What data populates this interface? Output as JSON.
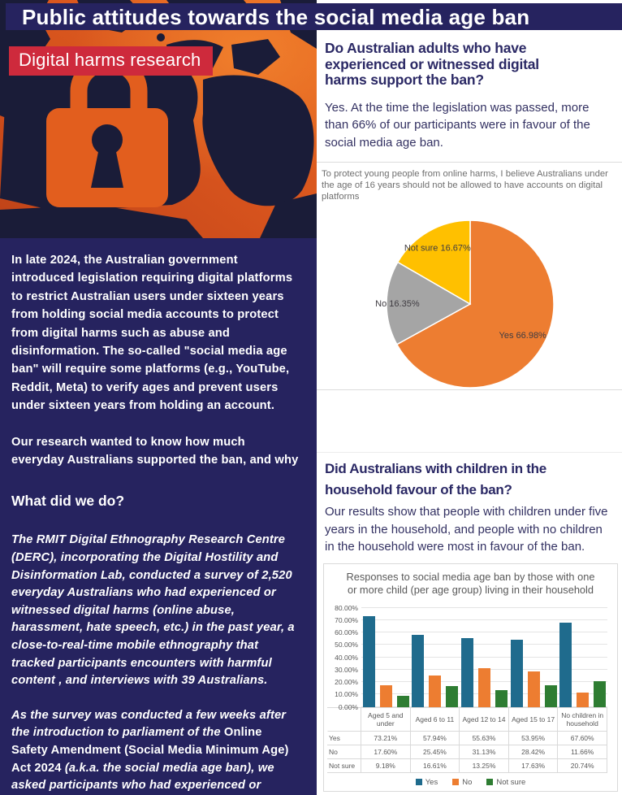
{
  "header": {
    "title": "Public attitudes towards the social media age ban"
  },
  "left": {
    "badge": "Digital harms research",
    "para1": "In late 2024, the Australian government introduced legislation requiring digital platforms to restrict Australian users under sixteen years from holding social media accounts to protect from digital harms such as abuse and disinformation.  The so-called \"social media age ban\" will require some platforms (e.g., YouTube, Reddit, Meta) to verify ages and prevent users under sixteen years from holding an account.",
    "para2": "Our research wanted to know how much everyday Australians supported the ban, and why",
    "subheading": "What did we do?",
    "para3": "The RMIT Digital Ethnography Research Centre (DERC), incorporating the Digital Hostility and Disinformation Lab, conducted a survey of 2,520 everyday Australians who had experienced or witnessed digital harms (online abuse, harassment, hate speech, etc.) in the past year, a close-to-real-time mobile ethnography that tracked participants encounters with harmful content , and interviews with 39 Australians.",
    "para4_italic_pre": "As the survey was conducted a few weeks after the introduction to parliament of the ",
    "para4_upright": "Online Safety Amendment (Social Media Minimum Age) Act 2024",
    "para4_italic_post": " (a.k.a. the social media age ban), we asked participants who had experienced or witnessed digital harms about the extent to which they supported it."
  },
  "right": {
    "q1_heading": "Do Australian adults who have experienced or witnessed digital harms support the ban?",
    "q1_body": "Yes. At the time the legislation was passed, more than 66% of our participants were in favour of the social media age ban.",
    "q2_heading": "Did Australians with children in the household favour of the ban?",
    "q2_body": "Our results show that people with children under five years in the household, and people with no children in the household were most in favour of the ban."
  },
  "chart_data": [
    {
      "type": "pie",
      "title": "To protect young people from online harms, I believe Australians under the age of 16 years should not be allowed to have accounts on digital platforms",
      "labels": [
        "Yes",
        "No",
        "Not sure"
      ],
      "values": [
        66.98,
        16.35,
        16.67
      ],
      "colors": [
        "#ED7D31",
        "#A5A5A5",
        "#FFC000"
      ],
      "start_angle": "top",
      "direction": "clockwise",
      "legend": "none"
    },
    {
      "type": "bar",
      "title": "Responses to social media age ban by those with one or more child (per age group) living in their household",
      "categories": [
        "Aged 5 and under",
        "Aged 6 to 11",
        "Aged 12 to 14",
        "Aged 15 to 17",
        "No children in household"
      ],
      "series": [
        {
          "name": "Yes",
          "color": "#1F6B8D",
          "values": [
            73.21,
            57.94,
            55.63,
            53.95,
            67.6
          ]
        },
        {
          "name": "No",
          "color": "#ED7D31",
          "values": [
            17.6,
            25.45,
            31.13,
            28.42,
            11.66
          ]
        },
        {
          "name": "Not sure",
          "color": "#2E7D32",
          "values": [
            9.18,
            16.61,
            13.25,
            17.63,
            20.74
          ]
        }
      ],
      "ylim": [
        0,
        80
      ],
      "ytick_step": 10,
      "value_format": "percent_2dp",
      "grid": true,
      "legend_position": "bottom",
      "data_table": true
    }
  ]
}
